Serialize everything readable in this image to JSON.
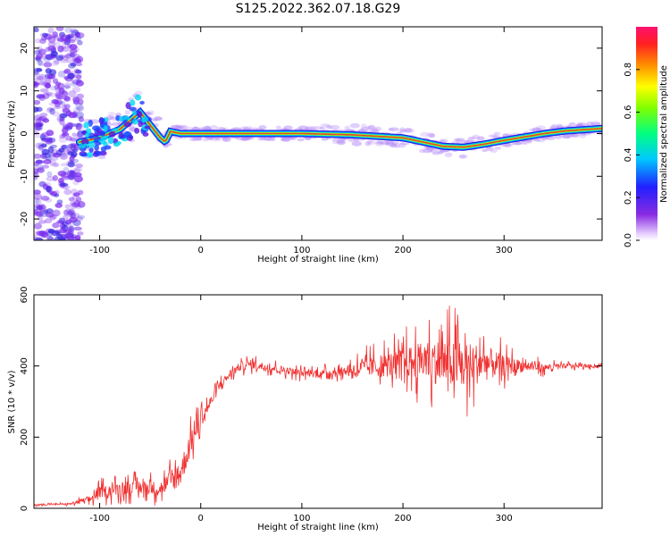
{
  "title": "S125.2022.362.07.18.G29",
  "colors": {
    "snr_line": "#f03030",
    "track_core": "#e8303a",
    "track_mid": "#a8ff00",
    "track_edge": "#00e0e8",
    "noise": "#7b2cf0",
    "axis": "#000000"
  },
  "chart_data": [
    {
      "type": "heatmap",
      "title": "S125.2022.362.07.18.G29",
      "xlabel": "Height of straight line (km)",
      "ylabel": "Frequency (Hz)",
      "xlim": [
        -165,
        397
      ],
      "ylim": [
        -25,
        25
      ],
      "x_ticks": [
        -100,
        0,
        100,
        200,
        300
      ],
      "y_ticks": [
        -20,
        -10,
        0,
        10,
        20
      ],
      "colorbar": {
        "label": "Normalized spectral amplitude",
        "range": [
          0,
          1
        ],
        "ticks": [
          "0.0",
          "0.2",
          "0.4",
          "0.6",
          "0.8"
        ],
        "colormap": "rainbow (purple-blue-cyan-green-yellow-orange-red-magenta)"
      },
      "ridge_frequency": {
        "x": [
          -120,
          -100,
          -80,
          -65,
          -60,
          -50,
          -40,
          -35,
          -30,
          -20,
          0,
          50,
          100,
          150,
          200,
          220,
          240,
          260,
          280,
          300,
          320,
          340,
          360,
          397
        ],
        "y": [
          -2,
          -1,
          1,
          4,
          5,
          2,
          -1,
          -2,
          0.5,
          0,
          0,
          0,
          0,
          -0.3,
          -1,
          -2,
          -3,
          -3.2,
          -2.5,
          -1.6,
          -0.8,
          0,
          0.6,
          1.2
        ]
      }
    },
    {
      "type": "line",
      "xlabel": "Height of straight line (km)",
      "ylabel": "SNR (10 * v/v)",
      "xlim": [
        -165,
        397
      ],
      "ylim": [
        0,
        600
      ],
      "x_ticks": [
        -100,
        0,
        100,
        200,
        300
      ],
      "y_ticks": [
        0,
        200,
        400,
        600
      ],
      "series": [
        {
          "name": "SNR",
          "envelope_x": [
            -165,
            -130,
            -110,
            -100,
            -80,
            -60,
            -40,
            -20,
            -10,
            0,
            10,
            20,
            30,
            40,
            50,
            60,
            80,
            100,
            120,
            140,
            160,
            180,
            200,
            220,
            240,
            260,
            280,
            300,
            320,
            340,
            360,
            397
          ],
          "envelope_mean": [
            10,
            12,
            25,
            45,
            55,
            60,
            55,
            100,
            180,
            250,
            300,
            350,
            380,
            400,
            405,
            400,
            390,
            380,
            380,
            385,
            395,
            400,
            410,
            415,
            410,
            400,
            410,
            400,
            400,
            395,
            400,
            400
          ],
          "envelope_spread": [
            5,
            6,
            25,
            40,
            45,
            50,
            50,
            100,
            80,
            60,
            40,
            30,
            30,
            30,
            30,
            30,
            25,
            25,
            25,
            30,
            60,
            80,
            100,
            130,
            170,
            170,
            130,
            70,
            40,
            25,
            15,
            10
          ]
        }
      ]
    }
  ]
}
